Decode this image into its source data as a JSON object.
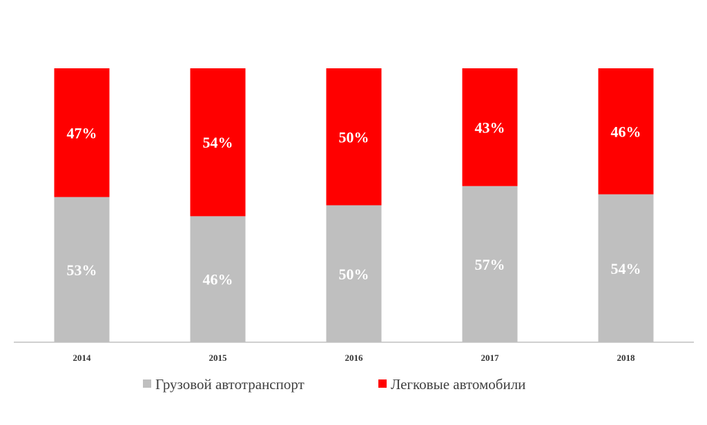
{
  "chart_data": {
    "type": "bar",
    "stacked": true,
    "percent": true,
    "categories": [
      "2014",
      "2015",
      "2016",
      "2017",
      "2018"
    ],
    "series": [
      {
        "name": "Грузовой автотранспорт",
        "values": [
          53,
          46,
          50,
          57,
          54
        ],
        "labels": [
          "53%",
          "46%",
          "50%",
          "57%",
          "54%"
        ],
        "color": "#bfbfbf"
      },
      {
        "name": "Легковые автомобили",
        "values": [
          47,
          54,
          50,
          43,
          46
        ],
        "labels": [
          "47%",
          "54%",
          "50%",
          "43%",
          "46%"
        ],
        "color": "#ff0000"
      }
    ],
    "ylim": [
      0,
      100
    ],
    "grid": false,
    "legend_position": "bottom"
  }
}
